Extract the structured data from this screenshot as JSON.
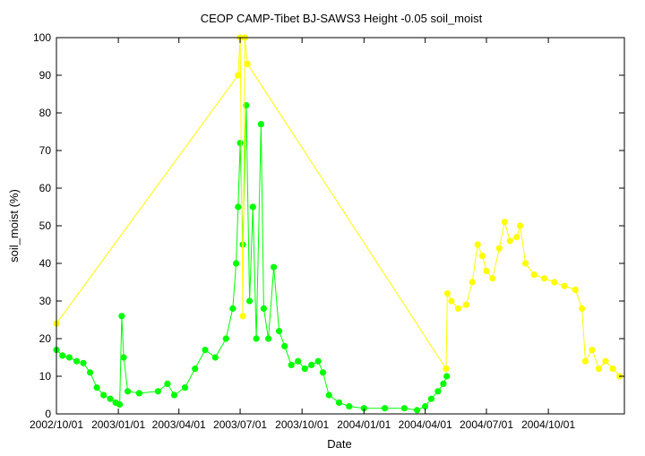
{
  "chart_data": {
    "type": "scatter",
    "title": "CEOP CAMP-Tibet BJ-SAWS3 Height -0.05 soil_moist",
    "xlabel": "Date",
    "ylabel": "soil_moist (%)",
    "xlim": [
      "2002-10-01",
      "2005-01-22"
    ],
    "ylim": [
      0,
      100
    ],
    "yticks": [
      0,
      10,
      20,
      30,
      40,
      50,
      60,
      70,
      80,
      90,
      100
    ],
    "xticks": [
      "2002/10/01",
      "2003/01/01",
      "2003/04/01",
      "2003/07/01",
      "2003/10/01",
      "2004/01/01",
      "2004/04/01",
      "2004/07/01",
      "2004/10/01"
    ],
    "grid": false,
    "legend": "none",
    "series": [
      {
        "color": "#00ff00",
        "points": [
          [
            "2002-10-01",
            17
          ],
          [
            "2002-10-10",
            15.5
          ],
          [
            "2002-10-20",
            15
          ],
          [
            "2002-10-31",
            14
          ],
          [
            "2002-11-10",
            13.5
          ],
          [
            "2002-11-20",
            11
          ],
          [
            "2002-11-30",
            7
          ],
          [
            "2002-12-10",
            5
          ],
          [
            "2002-12-20",
            4
          ],
          [
            "2002-12-28",
            3
          ],
          [
            "2003-01-03",
            2.5
          ],
          [
            "2003-01-06",
            26
          ],
          [
            "2003-01-09",
            15
          ],
          [
            "2003-01-15",
            6
          ],
          [
            "2003-02-01",
            5.5
          ],
          [
            "2003-03-01",
            6
          ],
          [
            "2003-03-15",
            8
          ],
          [
            "2003-03-25",
            5
          ],
          [
            "2003-04-10",
            7
          ],
          [
            "2003-04-25",
            12
          ],
          [
            "2003-05-10",
            17
          ],
          [
            "2003-05-25",
            15
          ],
          [
            "2003-06-10",
            20
          ],
          [
            "2003-06-20",
            28
          ],
          [
            "2003-06-25",
            40
          ],
          [
            "2003-06-28",
            55
          ],
          [
            "2003-07-01",
            72
          ],
          [
            "2003-07-05",
            45
          ],
          [
            "2003-07-10",
            82
          ],
          [
            "2003-07-15",
            30
          ],
          [
            "2003-07-20",
            55
          ],
          [
            "2003-07-25",
            20
          ],
          [
            "2003-08-01",
            77
          ],
          [
            "2003-08-05",
            28
          ],
          [
            "2003-08-12",
            20
          ],
          [
            "2003-08-20",
            39
          ],
          [
            "2003-08-28",
            22
          ],
          [
            "2003-09-05",
            18
          ],
          [
            "2003-09-15",
            13
          ],
          [
            "2003-09-25",
            14
          ],
          [
            "2003-10-05",
            12
          ],
          [
            "2003-10-15",
            13
          ],
          [
            "2003-10-25",
            14
          ],
          [
            "2003-11-01",
            11
          ],
          [
            "2003-11-10",
            5
          ],
          [
            "2003-11-25",
            3
          ],
          [
            "2003-12-10",
            2
          ],
          [
            "2004-01-01",
            1.5
          ],
          [
            "2004-02-01",
            1.5
          ],
          [
            "2004-03-01",
            1.5
          ],
          [
            "2004-03-20",
            1
          ],
          [
            "2004-04-01",
            2
          ],
          [
            "2004-04-10",
            4
          ],
          [
            "2004-04-20",
            6
          ],
          [
            "2004-04-28",
            8
          ],
          [
            "2004-05-03",
            10
          ]
        ]
      },
      {
        "color": "#ffff00",
        "points": [
          [
            "2002-10-01",
            24
          ],
          [
            "2003-06-28",
            90
          ],
          [
            "2003-07-01",
            100
          ],
          [
            "2003-07-05",
            26
          ],
          [
            "2003-07-08",
            100
          ],
          [
            "2003-07-12",
            93
          ],
          [
            "2004-05-02",
            12
          ],
          [
            "2004-05-04",
            32
          ],
          [
            "2004-05-10",
            30
          ],
          [
            "2004-05-20",
            28
          ],
          [
            "2004-06-01",
            29
          ],
          [
            "2004-06-10",
            35
          ],
          [
            "2004-06-18",
            45
          ],
          [
            "2004-06-25",
            42
          ],
          [
            "2004-07-01",
            38
          ],
          [
            "2004-07-10",
            36
          ],
          [
            "2004-07-20",
            44
          ],
          [
            "2004-07-28",
            51
          ],
          [
            "2004-08-05",
            46
          ],
          [
            "2004-08-15",
            47
          ],
          [
            "2004-08-20",
            50
          ],
          [
            "2004-08-28",
            40
          ],
          [
            "2004-09-10",
            37
          ],
          [
            "2004-09-25",
            36
          ],
          [
            "2004-10-10",
            35
          ],
          [
            "2004-10-25",
            34
          ],
          [
            "2004-11-10",
            33
          ],
          [
            "2004-11-20",
            28
          ],
          [
            "2004-11-25",
            14
          ],
          [
            "2004-12-05",
            17
          ],
          [
            "2004-12-15",
            12
          ],
          [
            "2004-12-25",
            14
          ],
          [
            "2005-01-05",
            12
          ],
          [
            "2005-01-15",
            10
          ]
        ]
      }
    ]
  }
}
